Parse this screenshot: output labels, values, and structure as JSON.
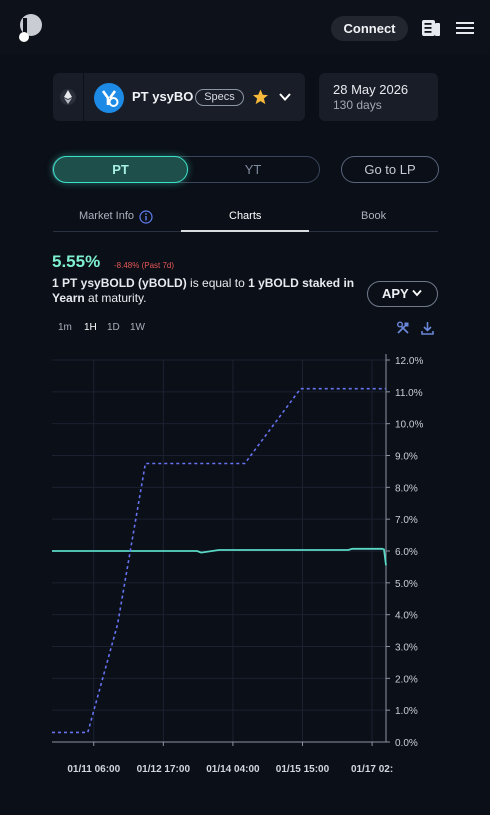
{
  "header": {
    "connect_label": "Connect",
    "icons": [
      "pendle-logo-icon",
      "book-icon",
      "menu-icon"
    ]
  },
  "market": {
    "chain_icon": "ethereum-icon",
    "token_icon": "yearn-token-icon",
    "name": "PT ysyBO",
    "specs_label": "Specs",
    "maturity_date": "28 May 2026",
    "days_left": "130 days"
  },
  "toggle": {
    "pt_label": "PT",
    "yt_label": "YT",
    "go_lp_label": "Go to LP"
  },
  "tabs": {
    "market_info": "Market Info",
    "charts": "Charts",
    "book": "Book"
  },
  "summary": {
    "apy": "5.55%",
    "change": "-8.48% (Past 7d)",
    "desc_part1": "1 PT ysyBOLD (yBOLD)",
    "desc_part2": " is equal to ",
    "desc_part3": "1 yBOLD staked in Yearn",
    "desc_part4": " at maturity.",
    "select_value": "APY"
  },
  "timeframes": [
    "1m",
    "1H",
    "1D",
    "1W"
  ],
  "colors": {
    "accent": "#3be2c9",
    "implied_apy_line": "#59d9c6",
    "underlying_apy_line": "#6673f2",
    "negative": "#e45757"
  },
  "chart_data": {
    "type": "line",
    "x_tick_labels": [
      "01/11 06:00",
      "01/12 17:00",
      "01/14 04:00",
      "01/15 15:00",
      "01/17 02:"
    ],
    "x_ticks_hours": [
      0,
      35,
      70,
      105,
      140
    ],
    "x_range_hours": [
      -21,
      147
    ],
    "y_tick_labels": [
      "12.0%",
      "11.0%",
      "10.0%",
      "9.0%",
      "8.0%",
      "7.0%",
      "6.0%",
      "5.0%",
      "4.0%",
      "3.0%",
      "2.0%",
      "1.0%",
      "0.0%"
    ],
    "ylim": [
      0,
      12
    ],
    "series": [
      {
        "style": "solid",
        "color": "#59d9c6",
        "x": [
          -21,
          32,
          52,
          54,
          63,
          128,
          130,
          145,
          146,
          147
        ],
        "y": [
          6.0,
          6.0,
          6.0,
          5.95,
          6.03,
          6.03,
          6.07,
          6.07,
          6.05,
          5.55
        ]
      },
      {
        "style": "dashed",
        "color": "#6673f2",
        "x": [
          -21,
          -3,
          12,
          26,
          58,
          76,
          104,
          147
        ],
        "y": [
          0.3,
          0.3,
          3.7,
          8.75,
          8.75,
          8.75,
          11.1,
          11.1
        ]
      }
    ]
  }
}
